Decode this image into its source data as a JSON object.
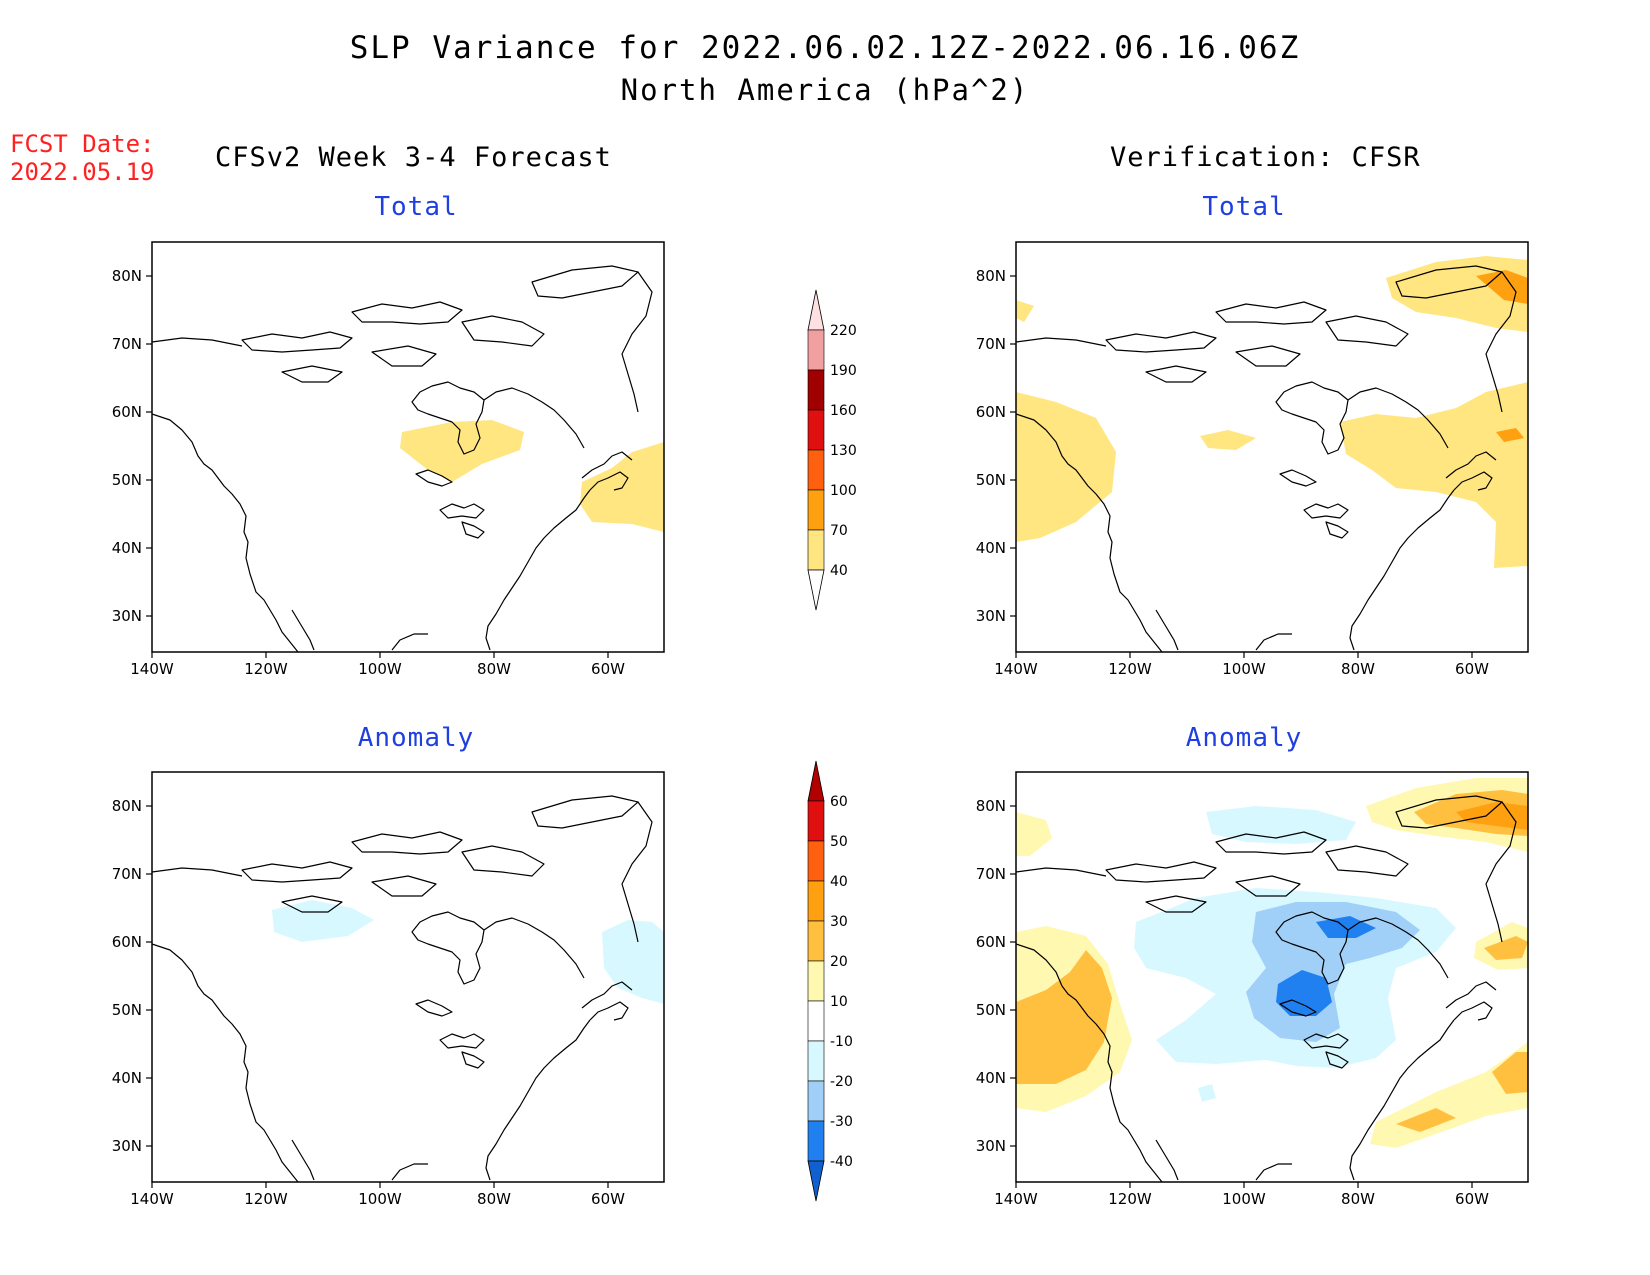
{
  "header": {
    "title": "SLP Variance for 2022.06.02.12Z-2022.06.16.06Z",
    "subtitle": "North America (hPa^2)",
    "fcst_label": "FCST Date:",
    "fcst_date": "2022.05.19",
    "left_heading": "CFSv2 Week 3-4 Forecast",
    "right_heading": "Verification: CFSR"
  },
  "panels": {
    "fcst_total_title": "Total",
    "fcst_anom_title": "Anomaly",
    "ver_total_title": "Total",
    "ver_anom_title": "Anomaly"
  },
  "axes": {
    "lat_ticks": [
      "80N",
      "70N",
      "60N",
      "50N",
      "40N",
      "30N"
    ],
    "lon_ticks": [
      "140W",
      "120W",
      "100W",
      "80W",
      "60W"
    ]
  },
  "colorbar_total": {
    "levels": [
      "40",
      "70",
      "100",
      "130",
      "160",
      "190",
      "220"
    ],
    "colors": [
      "#ffffff",
      "#ffe680",
      "#ffa010",
      "#ff6010",
      "#e01010",
      "#a00000",
      "#f0a0a0",
      "#ffe0e0"
    ]
  },
  "colorbar_anomaly": {
    "levels": [
      "-40",
      "-30",
      "-20",
      "-10",
      "10",
      "20",
      "30",
      "40",
      "50",
      "60"
    ],
    "colors": [
      "#1060d0",
      "#2080f0",
      "#a0d0f8",
      "#d8f8ff",
      "#ffffff",
      "#fff8b0",
      "#ffc040",
      "#ffa010",
      "#ff6010",
      "#e01010",
      "#b00000"
    ]
  }
}
